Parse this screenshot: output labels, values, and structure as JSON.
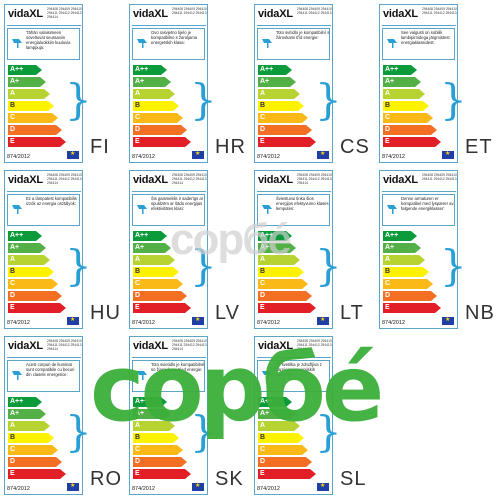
{
  "brand": "vidaXL",
  "footer_code": "874/2012",
  "labels": [
    {
      "lang": "FI",
      "models": "294408 294409 294410 294411 294412 294413 294414",
      "text": "Tähän valaisimeen soveltuvat seuraaviin energialuokkiin kuuluvia lamppuja:"
    },
    {
      "lang": "HR",
      "models": "294408 294409 294410 294411 294412 294413",
      "text": "Ovo rasvjetno tijelo je kompatibilno s žaruljama energetskih klasa:"
    },
    {
      "lang": "CS",
      "models": "294408 294409 294410 294411 294412 294413",
      "text": "Toto svítidlo je kompatibilní s žárovkami tříd energie:"
    },
    {
      "lang": "ET",
      "models": "294408 294409 294410 294411 294412 294413",
      "text": "See valgusti on sobilik lambipirnidega järgmistest energiaklassidest:"
    },
    {
      "lang": "HU",
      "models": "294408 294409 294410 294411 294412 294413 294414",
      "text": "Ez a lámpatest kompatibilis izzók az energia osztályok:"
    },
    {
      "lang": "LV",
      "models": "294408 294409 294410 294411 294412 294413 294414",
      "text": "Šis gaismeklis ir saderīgs ar spuldzēm ar šādu enerģijas efektivitātes klasi:"
    },
    {
      "lang": "LT",
      "models": "294408 294409 294410 294411 294412 294413 294414",
      "text": "Šviestuvui tinka šios energijos efektyvumo klasės lemputės:"
    },
    {
      "lang": "NB",
      "models": "294408 294409 294410 294411 294412 294413",
      "text": "Denne armaturen er kompatibel med lyspærer av følgende energiklasser:"
    },
    {
      "lang": "RO",
      "models": "294408 294409 294410 294411 294412 294413 294414",
      "text": "Acest corpuri de iluminat sunt compatibile cu becuri din clasele energetice:"
    },
    {
      "lang": "SK",
      "models": "294408 294409 294410 294411 294412 294413 294414",
      "text": "Toto svietidlo je kompatibilné so žiarovkami tried energie:"
    },
    {
      "lang": "SL",
      "models": "294408 294409 294410 294411 294412 294413 294414",
      "text": "Ta svetilka je združljiva z žarnicami energijskih razredov:"
    }
  ],
  "energy_classes": [
    {
      "label": "A++",
      "color": "#0c9b3a"
    },
    {
      "label": "A+",
      "color": "#52b047"
    },
    {
      "label": "A",
      "color": "#b7d332"
    },
    {
      "label": "B",
      "color": "#fff200"
    },
    {
      "label": "C",
      "color": "#fbb917"
    },
    {
      "label": "D",
      "color": "#f26f24"
    },
    {
      "label": "E",
      "color": "#e21f26"
    }
  ],
  "watermark_text": "copбé"
}
